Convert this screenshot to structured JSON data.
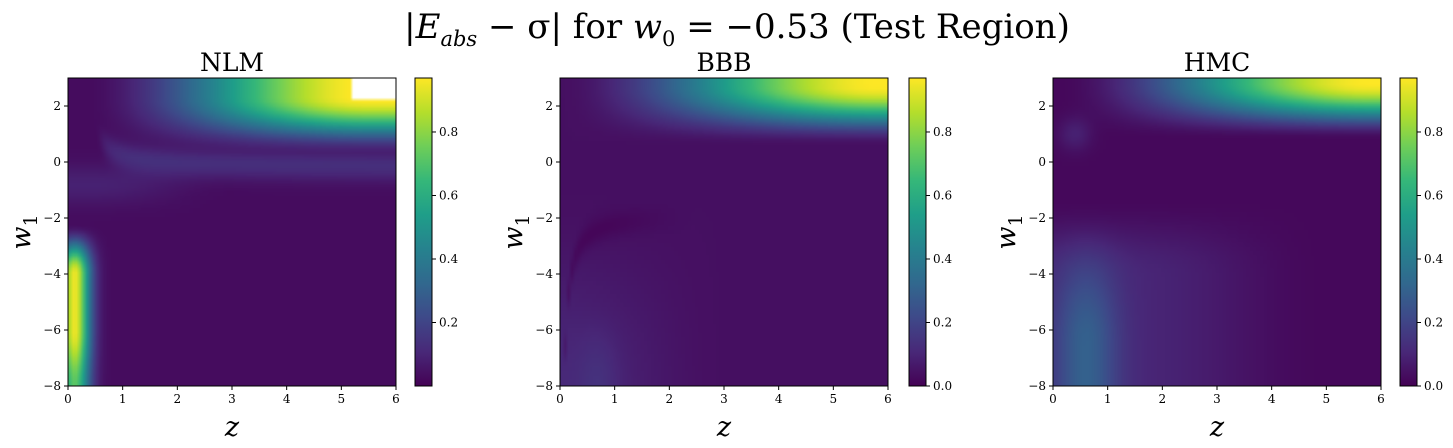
{
  "figure": {
    "title": "|E_abs − σ| for w_0 = −0.53 (Test Region)",
    "title_parts": {
      "bar_open": "|",
      "e": "E",
      "e_sub": "abs",
      "minus_sigma": " − σ| for ",
      "w": "w",
      "w_sub": "0",
      "value": " = −0.53 ",
      "region": "(Test Region)"
    }
  },
  "colormap": "viridis",
  "colormap_stops": [
    "#440154",
    "#482878",
    "#3e4989",
    "#31688e",
    "#26828e",
    "#1f9e89",
    "#35b779",
    "#6ece58",
    "#b5de2b",
    "#fde725"
  ],
  "chart_data": [
    {
      "type": "heatmap",
      "title": "NLM",
      "xlabel": "z",
      "ylabel": "w",
      "ylabel_sub": "1",
      "xlim": [
        0,
        6
      ],
      "ylim": [
        -8,
        3
      ],
      "xticks": [
        "0",
        "1",
        "2",
        "3",
        "4",
        "5",
        "6"
      ],
      "yticks": [
        "2",
        "0",
        "−2",
        "−4",
        "−6",
        "−8"
      ],
      "ytick_values": [
        2,
        0,
        -2,
        -4,
        -6,
        -8
      ],
      "colorbar": {
        "min": 0.0,
        "max": 0.97,
        "ticks": [
          "0.2",
          "0.4",
          "0.6",
          "0.8"
        ],
        "tick_values": [
          0.2,
          0.4,
          0.6,
          0.8
        ]
      }
    },
    {
      "type": "heatmap",
      "title": "BBB",
      "xlabel": "z",
      "ylabel": "w",
      "ylabel_sub": "1",
      "xlim": [
        0,
        6
      ],
      "ylim": [
        -8,
        3
      ],
      "xticks": [
        "0",
        "1",
        "2",
        "3",
        "4",
        "5",
        "6"
      ],
      "yticks": [
        "2",
        "0",
        "−2",
        "−4",
        "−6",
        "−8"
      ],
      "ytick_values": [
        2,
        0,
        -2,
        -4,
        -6,
        -8
      ],
      "colorbar": {
        "min": 0.0,
        "max": 0.97,
        "ticks": [
          "0.0",
          "0.2",
          "0.4",
          "0.6",
          "0.8"
        ],
        "tick_values": [
          0.0,
          0.2,
          0.4,
          0.6,
          0.8
        ]
      }
    },
    {
      "type": "heatmap",
      "title": "HMC",
      "xlabel": "z",
      "ylabel": "w",
      "ylabel_sub": "1",
      "xlim": [
        0,
        6
      ],
      "ylim": [
        -8,
        3
      ],
      "xticks": [
        "0",
        "1",
        "2",
        "3",
        "4",
        "5",
        "6"
      ],
      "yticks": [
        "2",
        "0",
        "−2",
        "−4",
        "−6",
        "−8"
      ],
      "ytick_values": [
        2,
        0,
        -2,
        -4,
        -6,
        -8
      ],
      "colorbar": {
        "min": 0.0,
        "max": 0.97,
        "ticks": [
          "0.0",
          "0.2",
          "0.4",
          "0.6",
          "0.8"
        ],
        "tick_values": [
          0.0,
          0.2,
          0.4,
          0.6,
          0.8
        ]
      }
    }
  ]
}
